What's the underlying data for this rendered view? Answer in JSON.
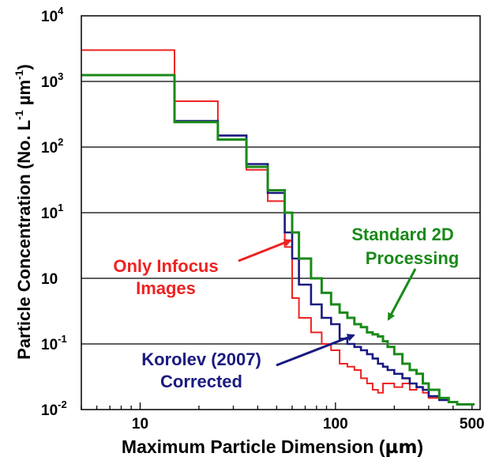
{
  "chart_data": {
    "type": "line",
    "xlabel_main": "Maximum Particle Dimension (",
    "xlabel_unit": "µm",
    "xlabel_close": ")",
    "ylabel_main": "Particle Concentration (No. L",
    "ylabel_sup1": "-1",
    "ylabel_mid": " µm",
    "ylabel_sup2": "-1",
    "ylabel_close": ")",
    "x_scale": "log",
    "y_scale": "log",
    "xlim": [
      5,
      550
    ],
    "ylim": [
      0.01,
      10000
    ],
    "x_tick_labels": [
      {
        "value": 10,
        "label": "10"
      },
      {
        "value": 100,
        "label": "100"
      },
      {
        "value": 500,
        "label": "500"
      }
    ],
    "y_tick_labels": [
      {
        "value": 0.01,
        "base": "10",
        "exp": "-2"
      },
      {
        "value": 0.1,
        "base": "10",
        "exp": "-1"
      },
      {
        "value": 1,
        "base": "10",
        "exp": ""
      },
      {
        "value": 10,
        "base": "10",
        "exp": "1"
      },
      {
        "value": 100,
        "base": "10",
        "exp": "2"
      },
      {
        "value": 1000,
        "base": "10",
        "exp": "3"
      },
      {
        "value": 10000,
        "base": "10",
        "exp": "4"
      }
    ],
    "grid": "horizontal",
    "series": [
      {
        "name": "Only Infocus Images",
        "color": "#ee2222",
        "x": [
          5,
          15,
          25,
          35,
          45,
          55,
          60,
          65,
          75,
          85,
          95,
          105,
          115,
          125,
          135,
          145,
          155,
          165,
          175,
          185,
          200,
          220,
          240,
          260,
          280,
          300,
          340,
          380,
          420,
          460
        ],
        "y": [
          3000,
          500,
          150,
          45,
          15,
          3,
          0.5,
          0.25,
          0.15,
          0.1,
          0.08,
          0.05,
          0.045,
          0.04,
          0.03,
          0.025,
          0.02,
          0.018,
          0.025,
          0.025,
          0.022,
          0.025,
          0.02,
          0.022,
          0.018,
          0.015,
          0.015,
          0.013,
          0.012,
          0.012
        ]
      },
      {
        "name": "Korolev (2007) Corrected",
        "color": "#1a1a80",
        "x": [
          5,
          15,
          25,
          35,
          45,
          55,
          60,
          65,
          75,
          85,
          95,
          105,
          115,
          125,
          135,
          145,
          155,
          165,
          175,
          185,
          200,
          220,
          240,
          260,
          280,
          300,
          340,
          380,
          420,
          460
        ],
        "y": [
          1250,
          250,
          150,
          55,
          20,
          5,
          2,
          0.8,
          0.4,
          0.25,
          0.2,
          0.12,
          0.1,
          0.09,
          0.08,
          0.07,
          0.06,
          0.05,
          0.045,
          0.04,
          0.035,
          0.03,
          0.025,
          0.022,
          0.02,
          0.016,
          0.014,
          0.013,
          0.012,
          0.012
        ]
      },
      {
        "name": "Standard 2D Processing",
        "color": "#1a8a1a",
        "x": [
          5,
          15,
          25,
          35,
          45,
          55,
          60,
          65,
          75,
          85,
          95,
          105,
          115,
          125,
          135,
          145,
          155,
          165,
          175,
          185,
          200,
          220,
          240,
          260,
          280,
          300,
          340,
          380,
          420,
          460
        ],
        "y": [
          1250,
          240,
          130,
          50,
          22,
          10,
          5,
          2,
          1,
          0.6,
          0.4,
          0.3,
          0.25,
          0.2,
          0.18,
          0.15,
          0.14,
          0.13,
          0.11,
          0.09,
          0.07,
          0.05,
          0.04,
          0.035,
          0.025,
          0.02,
          0.015,
          0.013,
          0.012,
          0.012
        ]
      }
    ],
    "annotations": [
      {
        "lines": [
          "Only Infocus",
          "Images"
        ],
        "color": "#ee2222"
      },
      {
        "lines": [
          "Standard 2D",
          "Processing"
        ],
        "color": "#1a8a1a"
      },
      {
        "lines": [
          "Korolev (2007)",
          "Corrected"
        ],
        "color": "#1a1a80"
      }
    ]
  }
}
